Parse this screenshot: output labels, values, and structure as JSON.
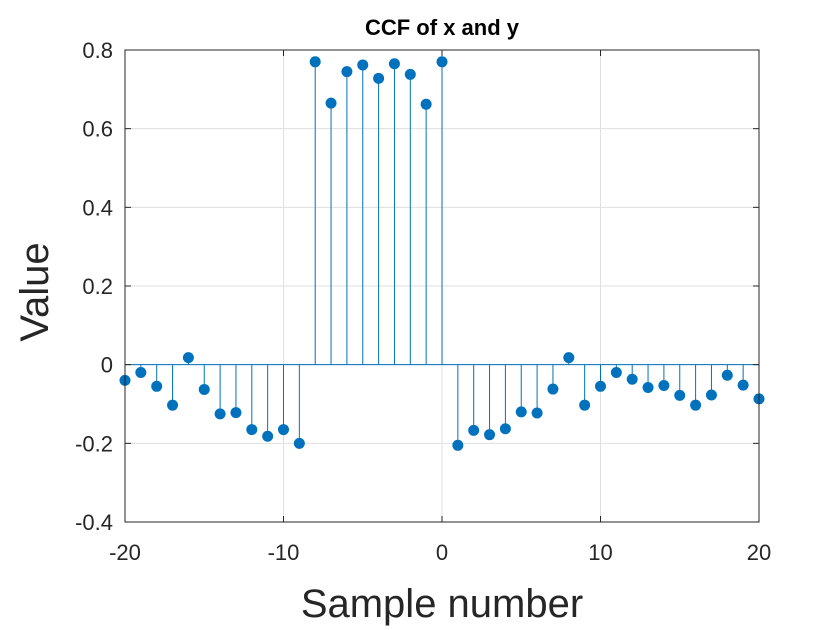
{
  "chart_data": {
    "type": "stem",
    "title": "CCF of x and y",
    "xlabel": "Sample number",
    "ylabel": "Value",
    "xlim": [
      -20,
      20
    ],
    "ylim": [
      -0.4,
      0.8
    ],
    "xticks": [
      -20,
      -10,
      0,
      10,
      20
    ],
    "xtick_labels": [
      "-20",
      "-10",
      "0",
      "10",
      "20"
    ],
    "yticks": [
      -0.4,
      -0.2,
      0,
      0.2,
      0.4,
      0.6,
      0.8
    ],
    "ytick_labels": [
      "-0.4",
      "-0.2",
      "0",
      "0.2",
      "0.4",
      "0.6",
      "0.8"
    ],
    "grid": true,
    "color": "#0072BD",
    "series": [
      {
        "x": [
          -20,
          -19,
          -18,
          -17,
          -16,
          -15,
          -14,
          -13,
          -12,
          -11,
          -10,
          -9,
          -8,
          -7,
          -6,
          -5,
          -4,
          -3,
          -2,
          -1,
          0,
          1,
          2,
          3,
          4,
          5,
          6,
          7,
          8,
          9,
          10,
          11,
          12,
          13,
          14,
          15,
          16,
          17,
          18,
          19,
          20
        ],
        "y": [
          -0.04,
          -0.02,
          -0.055,
          -0.103,
          0.018,
          -0.063,
          -0.125,
          -0.122,
          -0.165,
          -0.182,
          -0.165,
          -0.2,
          0.77,
          0.665,
          0.745,
          0.762,
          0.728,
          0.765,
          0.738,
          0.662,
          0.77,
          -0.205,
          -0.167,
          -0.178,
          -0.163,
          -0.12,
          -0.123,
          -0.062,
          0.018,
          -0.103,
          -0.055,
          -0.02,
          -0.037,
          -0.058,
          -0.053,
          -0.078,
          -0.103,
          -0.077,
          -0.027,
          -0.052,
          -0.087
        ]
      }
    ]
  }
}
